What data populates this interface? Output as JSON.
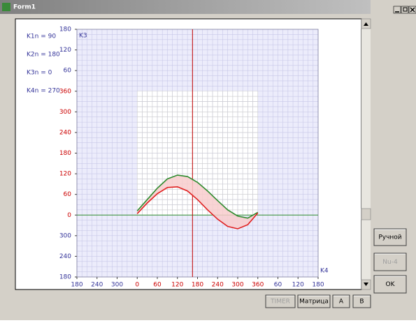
{
  "window": {
    "title": "Form1"
  },
  "params": [
    "K1n = 90",
    "K2n = 180",
    "K3n = 0",
    "K4n = 270"
  ],
  "buttons": {
    "manual": "Ручной",
    "nu4": "Nu-4",
    "ok": "OK",
    "timer": "TIMER",
    "matrix": "Матрица",
    "a": "A",
    "b": "B"
  },
  "chart_data": {
    "type": "line",
    "y_label": "K3",
    "x_label": "K4",
    "x": [
      0,
      30,
      60,
      90,
      120,
      150,
      180,
      210,
      240,
      270,
      300,
      330,
      360
    ],
    "series": [
      {
        "color": "#2e8b2e",
        "values": [
          12,
          45,
          78,
          105,
          116,
          112,
          95,
          70,
          42,
          15,
          -3,
          -9,
          8
        ]
      },
      {
        "color": "#e02020",
        "values": [
          4,
          35,
          62,
          80,
          82,
          70,
          45,
          15,
          -12,
          -33,
          -40,
          -28,
          6
        ]
      }
    ],
    "band_color": "#f8cccc",
    "xlim": [
      -180,
      540
    ],
    "ylim": [
      -180,
      540
    ],
    "xticks": [
      {
        "value": -180,
        "label": "180"
      },
      {
        "value": -120,
        "label": "240"
      },
      {
        "value": -60,
        "label": "300"
      },
      0,
      60,
      120,
      180,
      240,
      300,
      360,
      {
        "value": 420,
        "label": "60"
      },
      {
        "value": 480,
        "label": "120"
      },
      {
        "value": 540,
        "label": "180"
      }
    ],
    "yticks": [
      {
        "value": -180,
        "label": "180"
      },
      {
        "value": -120,
        "label": "240"
      },
      {
        "value": -60,
        "label": "300"
      },
      0,
      60,
      120,
      180,
      240,
      300,
      360,
      {
        "value": 420,
        "label": "60"
      },
      {
        "value": 480,
        "label": "120"
      },
      {
        "value": 540,
        "label": "180"
      }
    ],
    "inner_range": [
      0,
      360
    ],
    "inner_tick_color": "#cc0000",
    "outer_tick_color": "#333399",
    "minor_grid_step": 15,
    "cursor_x": 165,
    "zero_line_color": "#2e8b2e",
    "cursor_color": "#c00000"
  }
}
